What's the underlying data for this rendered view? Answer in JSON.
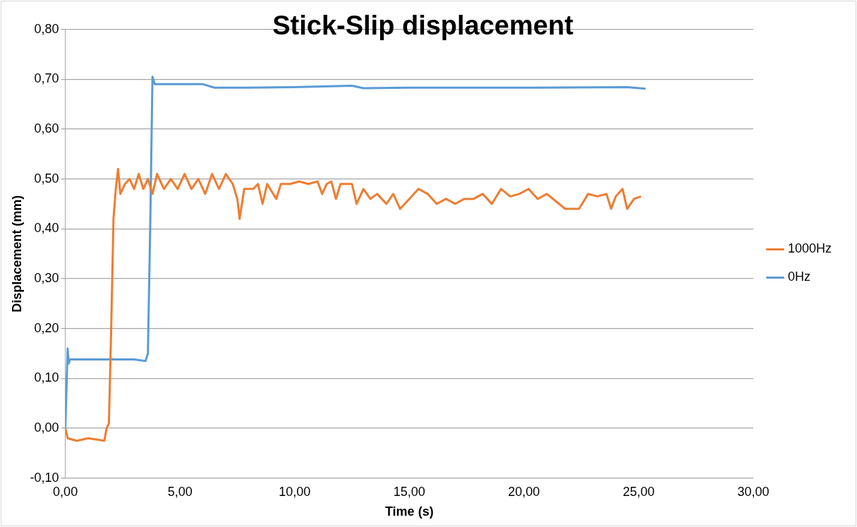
{
  "chart_data": {
    "type": "line",
    "title": "Stick-Slip displacement",
    "xlabel": "Time (s)",
    "ylabel": "Displacement (mm)",
    "xlim": [
      0,
      30
    ],
    "xticks": [
      {
        "value": 0,
        "label": "0,00"
      },
      {
        "value": 5,
        "label": "5,00"
      },
      {
        "value": 10,
        "label": "10,00"
      },
      {
        "value": 15,
        "label": "15,00"
      },
      {
        "value": 20,
        "label": "20,00"
      },
      {
        "value": 25,
        "label": "25,00"
      },
      {
        "value": 30,
        "label": "30,00"
      }
    ],
    "ylim": [
      -0.1,
      0.8
    ],
    "yticks": [
      {
        "value": -0.1,
        "label": "-0,10"
      },
      {
        "value": 0,
        "label": "0,00"
      },
      {
        "value": 0.1,
        "label": "0,10"
      },
      {
        "value": 0.2,
        "label": "0,20"
      },
      {
        "value": 0.3,
        "label": "0,30"
      },
      {
        "value": 0.4,
        "label": "0,40"
      },
      {
        "value": 0.5,
        "label": "0,50"
      },
      {
        "value": 0.6,
        "label": "0,60"
      },
      {
        "value": 0.7,
        "label": "0,70"
      },
      {
        "value": 0.8,
        "label": "0,80"
      }
    ],
    "grid": "y",
    "legend": "right",
    "marker": "none",
    "line_style": "solid",
    "series": [
      {
        "name": "1000Hz",
        "color": "#ed7d31",
        "x": [
          0,
          0.1,
          0.5,
          1.0,
          1.7,
          1.8,
          1.9,
          2.0,
          2.1,
          2.2,
          2.3,
          2.4,
          2.6,
          2.8,
          3.0,
          3.2,
          3.4,
          3.6,
          3.8,
          4.0,
          4.3,
          4.6,
          4.9,
          5.2,
          5.5,
          5.8,
          6.1,
          6.4,
          6.7,
          7.0,
          7.3,
          7.5,
          7.6,
          7.8,
          8.2,
          8.4,
          8.6,
          8.8,
          9.2,
          9.4,
          9.8,
          10.2,
          10.6,
          11.0,
          11.2,
          11.4,
          11.6,
          11.8,
          12.0,
          12.5,
          12.7,
          13.0,
          13.3,
          13.6,
          14.0,
          14.3,
          14.6,
          15.0,
          15.4,
          15.8,
          16.2,
          16.6,
          17.0,
          17.4,
          17.8,
          18.2,
          18.6,
          19.0,
          19.4,
          19.8,
          20.2,
          20.6,
          21.0,
          21.4,
          21.8,
          22.4,
          22.8,
          23.2,
          23.6,
          23.8,
          24.0,
          24.3,
          24.5,
          24.8,
          25.1
        ],
        "values": [
          0,
          -0.02,
          -0.025,
          -0.02,
          -0.025,
          0,
          0.01,
          0.2,
          0.42,
          0.48,
          0.52,
          0.47,
          0.49,
          0.5,
          0.48,
          0.51,
          0.48,
          0.5,
          0.47,
          0.51,
          0.48,
          0.5,
          0.48,
          0.51,
          0.48,
          0.5,
          0.47,
          0.51,
          0.48,
          0.51,
          0.49,
          0.46,
          0.42,
          0.48,
          0.48,
          0.49,
          0.45,
          0.49,
          0.46,
          0.49,
          0.49,
          0.495,
          0.49,
          0.495,
          0.47,
          0.49,
          0.495,
          0.46,
          0.49,
          0.49,
          0.45,
          0.48,
          0.46,
          0.47,
          0.45,
          0.47,
          0.44,
          0.46,
          0.48,
          0.47,
          0.45,
          0.46,
          0.45,
          0.46,
          0.46,
          0.47,
          0.45,
          0.48,
          0.465,
          0.47,
          0.48,
          0.46,
          0.47,
          0.455,
          0.44,
          0.44,
          0.47,
          0.465,
          0.47,
          0.44,
          0.465,
          0.48,
          0.44,
          0.46,
          0.465
        ]
      },
      {
        "name": "0Hz",
        "color": "#5b9bd5",
        "x": [
          0,
          0.1,
          0.15,
          0.2,
          1.0,
          2.0,
          3.0,
          3.5,
          3.6,
          3.7,
          3.8,
          3.9,
          5.0,
          6.0,
          6.5,
          8.0,
          10.0,
          12.5,
          13.0,
          15.0,
          20.0,
          24.5,
          25.3
        ],
        "values": [
          0,
          0.16,
          0.13,
          0.138,
          0.138,
          0.138,
          0.138,
          0.135,
          0.15,
          0.4,
          0.705,
          0.69,
          0.69,
          0.69,
          0.683,
          0.683,
          0.684,
          0.687,
          0.682,
          0.683,
          0.683,
          0.684,
          0.681
        ]
      }
    ]
  }
}
